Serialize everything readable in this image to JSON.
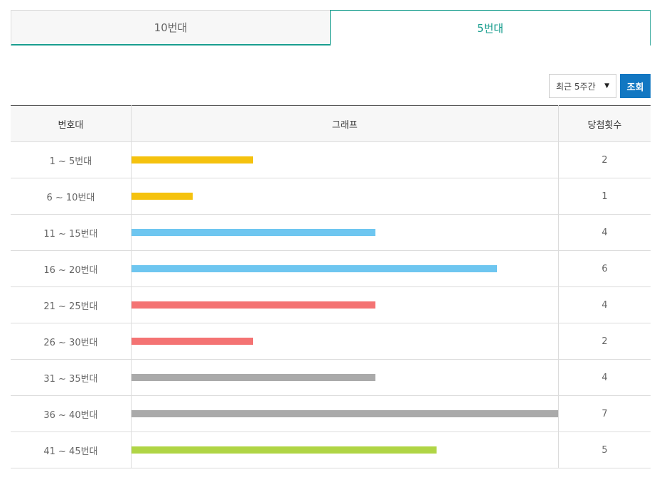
{
  "tabs": [
    {
      "label": "10번대",
      "active": false
    },
    {
      "label": "5번대",
      "active": true
    }
  ],
  "period_select": {
    "value": "최근 5주간"
  },
  "search_button": {
    "label": "조회"
  },
  "table": {
    "headers": {
      "range": "번호대",
      "graph": "그래프",
      "count": "당첨횟수"
    },
    "max_count": 7,
    "rows": [
      {
        "range": "1 ~ 5번대",
        "count": 2,
        "color": "#f5c20e"
      },
      {
        "range": "6 ~ 10번대",
        "count": 1,
        "color": "#f5c20e"
      },
      {
        "range": "11 ~ 15번대",
        "count": 4,
        "color": "#6ec6f0"
      },
      {
        "range": "16 ~ 20번대",
        "count": 6,
        "color": "#6ec6f0"
      },
      {
        "range": "21 ~ 25번대",
        "count": 4,
        "color": "#f47373"
      },
      {
        "range": "26 ~ 30번대",
        "count": 2,
        "color": "#f47373"
      },
      {
        "range": "31 ~ 35번대",
        "count": 4,
        "color": "#aaaaaa"
      },
      {
        "range": "36 ~ 40번대",
        "count": 7,
        "color": "#aaaaaa"
      },
      {
        "range": "41 ~ 45번대",
        "count": 5,
        "color": "#b0d545"
      }
    ]
  },
  "chart_data": {
    "type": "bar",
    "categories": [
      "1 ~ 5번대",
      "6 ~ 10번대",
      "11 ~ 15번대",
      "16 ~ 20번대",
      "21 ~ 25번대",
      "26 ~ 30번대",
      "31 ~ 35번대",
      "36 ~ 40번대",
      "41 ~ 45번대"
    ],
    "values": [
      2,
      1,
      4,
      6,
      4,
      2,
      4,
      7,
      5
    ],
    "title": "",
    "xlabel": "",
    "ylabel": ""
  }
}
